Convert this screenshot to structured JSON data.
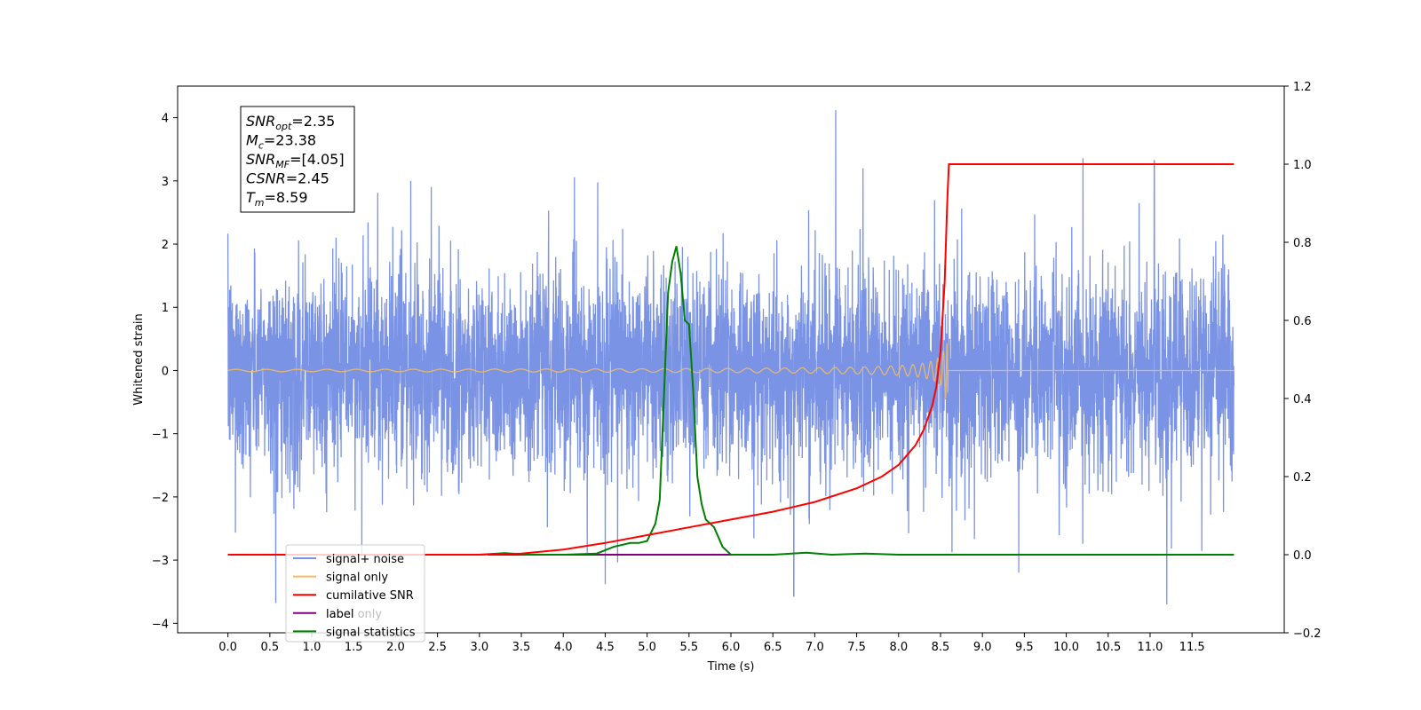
{
  "chart_data": {
    "type": "line",
    "xlabel": "Time (s)",
    "ylabel": "Whitened strain",
    "xlim": [
      -0.6,
      12.6
    ],
    "ylim": [
      -4.15,
      4.5
    ],
    "y2lim": [
      -0.2,
      1.2
    ],
    "x_ticks": [
      "0.0",
      "0.5",
      "1.0",
      "1.5",
      "2.0",
      "2.5",
      "3.0",
      "3.5",
      "4.0",
      "4.5",
      "5.0",
      "5.5",
      "6.0",
      "6.5",
      "7.0",
      "7.5",
      "8.0",
      "8.5",
      "9.0",
      "9.5",
      "10.0",
      "10.5",
      "11.0",
      "11.5"
    ],
    "y_ticks": [
      "4",
      "3",
      "2",
      "1",
      "0",
      "−1",
      "−2",
      "−3",
      "−4"
    ],
    "y2_ticks": [
      "1.2",
      "1.0",
      "0.8",
      "0.6",
      "0.4",
      "0.2",
      "0.0",
      "−0.2"
    ],
    "legend_placement": "lower-left",
    "annotation_lines": [
      "SNR_opt=2.35",
      "M_c=23.38",
      "SNR_MF=[4.05]",
      "CSNR=2.45",
      "T_m=8.59"
    ],
    "series": [
      {
        "name": "signal+ noise",
        "axis": "left",
        "color": "#7b93e5",
        "description_values": {
          "x_range": [
            0.0,
            12.0
          ],
          "typical_band": [
            -1.6,
            1.6
          ],
          "peaks": [
            {
              "x": 7.25,
              "y": 4.12
            },
            {
              "x": 10.2,
              "y": 3.36
            },
            {
              "x": 11.05,
              "y": 3.32
            },
            {
              "x": 0.57,
              "y": -3.68
            },
            {
              "x": 11.2,
              "y": -3.7
            },
            {
              "x": 6.75,
              "y": -3.57
            },
            {
              "x": 4.5,
              "y": -3.38
            }
          ]
        }
      },
      {
        "name": "signal only",
        "axis": "left",
        "color": "#f5bd61",
        "chirp": {
          "x_start": 0.0,
          "x_merge": 8.59,
          "x_end": 12.0,
          "peak_amplitude": 0.45
        }
      },
      {
        "name": "cumilative SNR",
        "axis": "right",
        "color": "#ff0000",
        "x": [
          0.0,
          3.0,
          3.5,
          4.0,
          4.5,
          5.0,
          5.5,
          6.0,
          6.5,
          7.0,
          7.5,
          7.8,
          8.0,
          8.2,
          8.3,
          8.4,
          8.45,
          8.5,
          8.55,
          8.58,
          8.6,
          9.0,
          10.0,
          11.0,
          12.0
        ],
        "values": [
          0.0,
          0.0,
          0.003,
          0.013,
          0.03,
          0.05,
          0.07,
          0.09,
          0.11,
          0.135,
          0.17,
          0.2,
          0.23,
          0.28,
          0.32,
          0.38,
          0.43,
          0.52,
          0.7,
          0.9,
          1.0,
          1.0,
          1.0,
          1.0,
          1.0
        ]
      },
      {
        "name": "label",
        "axis": "right",
        "color": "#800080",
        "x": [
          3.1,
          6.0
        ],
        "values": [
          0.0,
          0.0
        ]
      },
      {
        "name": "signal statistics",
        "axis": "right",
        "color": "#008000",
        "x": [
          0.0,
          3.0,
          3.3,
          3.6,
          4.0,
          4.4,
          4.6,
          4.8,
          4.9,
          5.0,
          5.1,
          5.15,
          5.2,
          5.25,
          5.3,
          5.35,
          5.4,
          5.45,
          5.5,
          5.55,
          5.6,
          5.65,
          5.7,
          5.8,
          5.9,
          6.0,
          6.5,
          6.9,
          7.2,
          7.6,
          8.0,
          12.0
        ],
        "values": [
          0.0,
          0.0,
          0.004,
          0.0,
          0.0,
          0.003,
          0.02,
          0.03,
          0.03,
          0.035,
          0.08,
          0.14,
          0.4,
          0.67,
          0.75,
          0.79,
          0.72,
          0.6,
          0.59,
          0.42,
          0.2,
          0.13,
          0.09,
          0.07,
          0.02,
          0.0,
          0.0,
          0.005,
          0.0,
          0.003,
          0.0,
          0.0
        ]
      }
    ],
    "legend": [
      {
        "label": "signal+ noise",
        "color": "#7b93e5"
      },
      {
        "label": "signal only",
        "color": "#f5bd61"
      },
      {
        "label": "cumilative SNR",
        "color": "#ff0000"
      },
      {
        "label": "label",
        "color": "#800080"
      },
      {
        "label": "signal statistics",
        "color": "#008000"
      }
    ],
    "ghost_label": "label only"
  }
}
